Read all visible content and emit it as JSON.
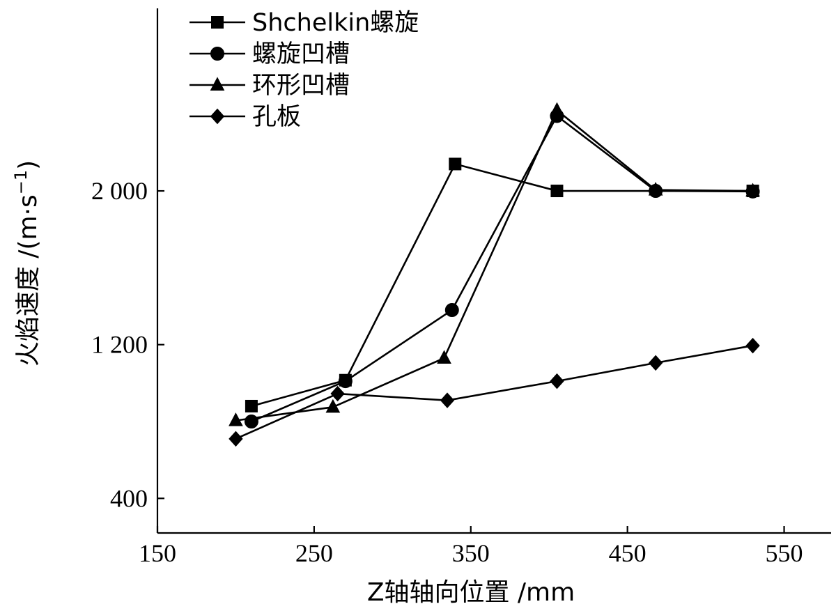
{
  "chart_data": {
    "type": "line",
    "xlabel": "Z轴轴向位置 /mm",
    "ylabel": "火焰速度 /(m·s",
    "ylabel_superscript": "−1",
    "ylabel_close": ")",
    "xlim": [
      150,
      580
    ],
    "ylim": [
      220,
      2950
    ],
    "x_ticks": [
      150,
      250,
      350,
      450,
      550
    ],
    "x_tick_labels": [
      "150",
      "250",
      "350",
      "450",
      "550"
    ],
    "y_ticks": [
      400,
      1200,
      2000
    ],
    "y_tick_labels": [
      "400",
      "1 200",
      "2 000"
    ],
    "legend_position": "top-left",
    "series": [
      {
        "name": "Shchelkin螺旋",
        "marker": "square",
        "x": [
          210,
          270,
          340,
          405,
          530
        ],
        "y": [
          880,
          1015,
          2140,
          2000,
          2000
        ]
      },
      {
        "name": "螺旋凹槽",
        "marker": "circle",
        "x": [
          210,
          270,
          338,
          405,
          468,
          530
        ],
        "y": [
          800,
          1010,
          1380,
          2390,
          2000,
          1997
        ]
      },
      {
        "name": "环形凹槽",
        "marker": "triangle",
        "x": [
          200,
          262,
          333,
          405,
          468,
          530
        ],
        "y": [
          805,
          875,
          1130,
          2420,
          2005,
          2000
        ]
      },
      {
        "name": "孔板",
        "marker": "diamond",
        "x": [
          200,
          265,
          335,
          405,
          468,
          530
        ],
        "y": [
          710,
          945,
          910,
          1010,
          1105,
          1195
        ]
      }
    ]
  }
}
